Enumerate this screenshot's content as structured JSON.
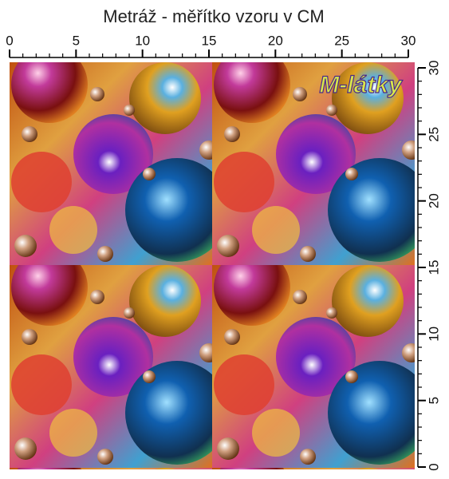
{
  "title": "Metráž - měřítko vzoru v CM",
  "ruler_top": {
    "labels": [
      0,
      5,
      10,
      15,
      20,
      25,
      30
    ]
  },
  "ruler_right": {
    "labels": [
      0,
      5,
      10,
      15,
      20,
      25,
      30
    ]
  },
  "logo": "M-látky"
}
